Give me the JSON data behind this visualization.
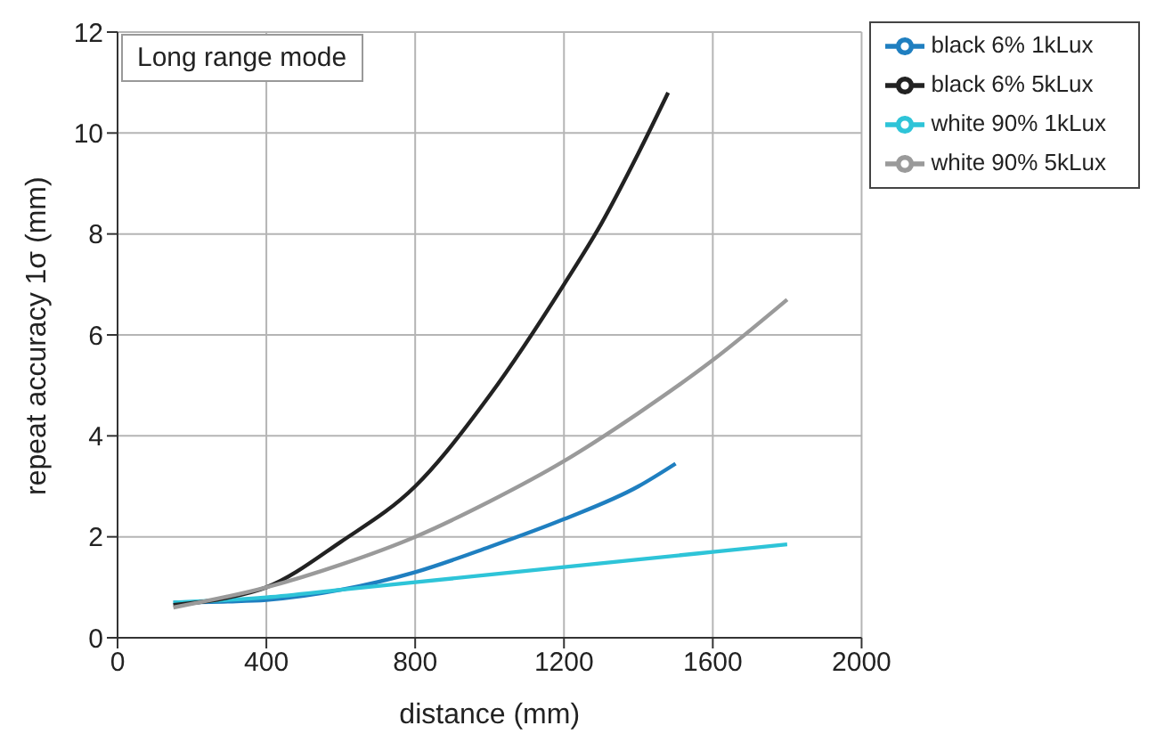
{
  "chart_data": {
    "type": "line",
    "xlabel": "distance (mm)",
    "ylabel": "repeat accuracy 1σ (mm)",
    "annotations": [
      "Long range mode"
    ],
    "xlim": [
      0,
      2000
    ],
    "xticks": [
      0,
      400,
      800,
      1200,
      1600,
      2000
    ],
    "ylim": [
      0,
      12
    ],
    "yticks": [
      0,
      2,
      4,
      6,
      8,
      10,
      12
    ],
    "grid": true,
    "legend": "top right",
    "marker": "none",
    "line_style": "solid",
    "series": [
      {
        "name": "black 6% 1kLux",
        "color": "#1f7fc0",
        "x": [
          150,
          300,
          400,
          600,
          800,
          1000,
          1200,
          1400,
          1500
        ],
        "values": [
          0.7,
          0.72,
          0.75,
          0.95,
          1.3,
          1.8,
          2.35,
          3.0,
          3.45
        ]
      },
      {
        "name": "white 90% 1kLux",
        "color": "#2ec4d8",
        "x": [
          150,
          400,
          600,
          800,
          1000,
          1200,
          1400,
          1600,
          1800
        ],
        "values": [
          0.7,
          0.8,
          0.95,
          1.1,
          1.25,
          1.4,
          1.55,
          1.7,
          1.85
        ]
      },
      {
        "name": "black 6% 5kLux",
        "color": "#222222",
        "x": [
          150,
          300,
          400,
          600,
          800,
          1000,
          1200,
          1300,
          1400,
          1480
        ],
        "values": [
          0.65,
          0.8,
          1.0,
          1.9,
          3.0,
          4.8,
          7.0,
          8.2,
          9.6,
          10.8
        ]
      },
      {
        "name": "white 90% 5kLux",
        "color": "#9a9a9a",
        "x": [
          150,
          400,
          600,
          800,
          1000,
          1200,
          1400,
          1600,
          1800
        ],
        "values": [
          0.6,
          1.0,
          1.45,
          2.0,
          2.7,
          3.5,
          4.45,
          5.5,
          6.7
        ]
      }
    ]
  }
}
